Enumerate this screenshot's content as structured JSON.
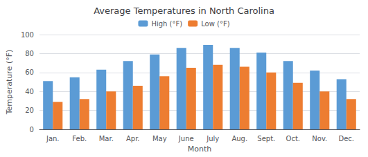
{
  "chart_data": {
    "type": "bar",
    "title": "Average Temperatures in North Carolina",
    "xlabel": "Month",
    "ylabel": "Temperature (°F)",
    "categories": [
      "Jan.",
      "Feb.",
      "Mar.",
      "Apr.",
      "May",
      "June",
      "July",
      "Aug.",
      "Sept.",
      "Oct.",
      "Nov.",
      "Dec."
    ],
    "series": [
      {
        "name": "High (°F)",
        "color": "#5B9BD5",
        "values": [
          51,
          55,
          63,
          72,
          79,
          86,
          89,
          86,
          81,
          72,
          62,
          53
        ]
      },
      {
        "name": "Low (°F)",
        "color": "#ED7D31",
        "values": [
          29,
          32,
          40,
          46,
          56,
          65,
          68,
          66,
          60,
          49,
          40,
          32
        ]
      }
    ],
    "ylim": [
      0,
      100
    ],
    "yticks": [
      0,
      20,
      40,
      60,
      80,
      100
    ],
    "grid": true,
    "legend": "top"
  }
}
